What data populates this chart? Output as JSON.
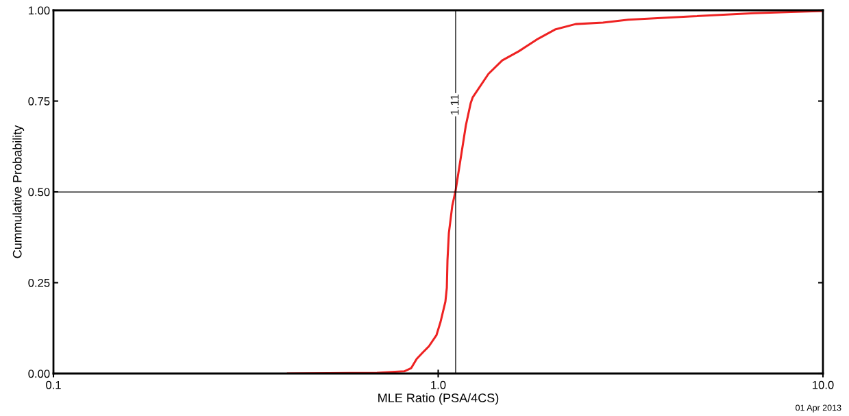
{
  "chart_data": {
    "type": "line",
    "xlabel": "MLE Ratio (PSA/4CS)",
    "ylabel": "Cummulative Probability",
    "log": "x",
    "xlim": [
      0.1,
      10
    ],
    "xticks": [
      {
        "value": 0.1,
        "label": "0.1"
      },
      {
        "value": 1,
        "label": "1.0"
      },
      {
        "value": 10,
        "label": "10.0"
      }
    ],
    "ylim": [
      0,
      1
    ],
    "yticks": [
      {
        "value": 0,
        "label": "0.00"
      },
      {
        "value": 0.25,
        "label": "0.25"
      },
      {
        "value": 0.5,
        "label": "0.50"
      },
      {
        "value": 0.75,
        "label": "0.75"
      },
      {
        "value": 1,
        "label": "1.00"
      }
    ],
    "grid": false,
    "series": [
      {
        "color": "#ee2222",
        "x": [
          0.407,
          0.693,
          0.816,
          0.851,
          0.879,
          0.912,
          0.946,
          0.99,
          1.014,
          1.044,
          1.053,
          1.057,
          1.066,
          1.088,
          1.11,
          1.18,
          1.215,
          1.229,
          1.351,
          1.467,
          1.619,
          1.801,
          2.012,
          2.276,
          2.68,
          3.12,
          4.51,
          6.61,
          10
        ],
        "values": [
          0.0,
          0.002,
          0.006,
          0.015,
          0.04,
          0.058,
          0.075,
          0.106,
          0.142,
          0.198,
          0.236,
          0.311,
          0.387,
          0.462,
          0.504,
          0.683,
          0.745,
          0.76,
          0.825,
          0.862,
          0.887,
          0.919,
          0.947,
          0.962,
          0.966,
          0.974,
          0.983,
          0.992,
          0.998
        ]
      }
    ],
    "ref_lines": [
      {
        "axis": "x",
        "value": 1.11,
        "label": "1.11"
      },
      {
        "axis": "y",
        "value": 0.5
      }
    ],
    "annotations": [
      "01 Apr 2013"
    ]
  }
}
